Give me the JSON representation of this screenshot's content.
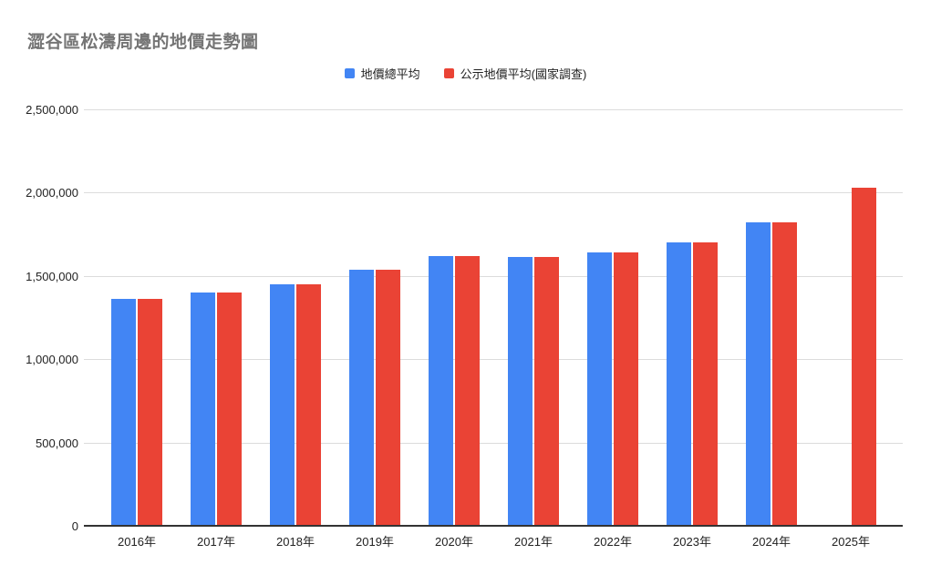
{
  "title": "澀谷區松濤周邊的地價走勢圖",
  "colors": {
    "series_blue": "#4285F4",
    "series_red": "#EA4335",
    "title_gray": "#757575",
    "gridline": "#dcdcdc",
    "axis_line": "#333333",
    "tick_text": "#222222",
    "background": "#ffffff"
  },
  "chart_data": {
    "type": "bar",
    "title": "澀谷區松濤周邊的地價走勢圖",
    "categories": [
      "2016年",
      "2017年",
      "2018年",
      "2019年",
      "2020年",
      "2021年",
      "2022年",
      "2023年",
      "2024年",
      "2025年"
    ],
    "series": [
      {
        "name": "地價總平均",
        "color": "#4285F4",
        "values": [
          1360000,
          1400000,
          1450000,
          1535000,
          1620000,
          1610000,
          1640000,
          1700000,
          1820000,
          null
        ]
      },
      {
        "name": "公示地價平均(國家調查)",
        "color": "#EA4335",
        "values": [
          1360000,
          1400000,
          1450000,
          1535000,
          1620000,
          1610000,
          1640000,
          1700000,
          1820000,
          2030000
        ]
      }
    ],
    "xlabel": "",
    "ylabel": "",
    "ylim": [
      0,
      2500000
    ],
    "ytick_interval": 500000,
    "ytick_labels": [
      "0",
      "500,000",
      "1,000,000",
      "1,500,000",
      "2,000,000",
      "2,500,000"
    ],
    "grid": true,
    "legend_position": "top-center"
  }
}
